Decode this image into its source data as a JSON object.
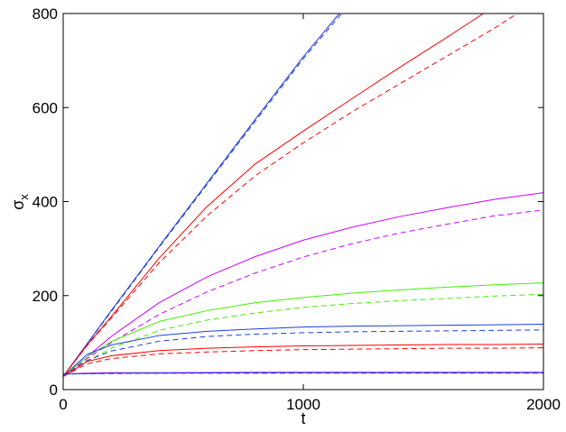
{
  "chart_data": {
    "type": "line",
    "xlabel": "t",
    "ylabel": "σ",
    "ylabel_subscript": "x",
    "xlim": [
      0,
      2000
    ],
    "ylim": [
      0,
      800
    ],
    "xticks": [
      0,
      1000,
      2000
    ],
    "yticks": [
      0,
      200,
      400,
      600,
      800
    ],
    "grid": false,
    "colors": {
      "blue": "#1f3de0",
      "red": "#ff0000",
      "magenta": "#cc00ff",
      "green": "#44ee00",
      "frame": "#000000"
    },
    "series": [
      {
        "color": "blue",
        "style": "solid",
        "x": [
          0,
          100,
          200,
          400,
          600,
          800,
          1000,
          1150
        ],
        "y": [
          28,
          98,
          168,
          305,
          440,
          575,
          708,
          800
        ]
      },
      {
        "color": "blue",
        "style": "dashed",
        "x": [
          0,
          100,
          200,
          400,
          600,
          800,
          1000,
          1160
        ],
        "y": [
          28,
          97,
          166,
          303,
          437,
          571,
          704,
          800
        ]
      },
      {
        "color": "red",
        "style": "solid",
        "x": [
          0,
          100,
          200,
          400,
          600,
          800,
          1000,
          1200,
          1400,
          1600,
          1750
        ],
        "y": [
          28,
          95,
          155,
          280,
          390,
          480,
          550,
          618,
          685,
          750,
          800
        ]
      },
      {
        "color": "red",
        "style": "dashed",
        "x": [
          0,
          100,
          200,
          400,
          600,
          800,
          1000,
          1200,
          1400,
          1600,
          1800,
          1890
        ],
        "y": [
          28,
          94,
          152,
          270,
          370,
          455,
          525,
          590,
          650,
          710,
          770,
          800
        ]
      },
      {
        "color": "magenta",
        "style": "solid",
        "x": [
          0,
          100,
          200,
          400,
          600,
          800,
          1000,
          1200,
          1400,
          1600,
          1800,
          2000
        ],
        "y": [
          28,
          70,
          113,
          185,
          240,
          283,
          318,
          345,
          368,
          387,
          405,
          419
        ]
      },
      {
        "color": "magenta",
        "style": "dashed",
        "x": [
          0,
          100,
          200,
          400,
          600,
          800,
          1000,
          1200,
          1400,
          1600,
          1800,
          2000
        ],
        "y": [
          28,
          66,
          100,
          160,
          208,
          248,
          282,
          310,
          333,
          352,
          370,
          382
        ]
      },
      {
        "color": "green",
        "style": "solid",
        "x": [
          0,
          100,
          200,
          400,
          600,
          800,
          1000,
          1200,
          1400,
          1600,
          1800,
          2000
        ],
        "y": [
          28,
          70,
          102,
          145,
          168,
          185,
          196,
          205,
          212,
          218,
          223,
          227
        ]
      },
      {
        "color": "green",
        "style": "dashed",
        "x": [
          0,
          100,
          200,
          400,
          600,
          800,
          1000,
          1200,
          1400,
          1600,
          1800,
          2000
        ],
        "y": [
          28,
          60,
          88,
          126,
          148,
          163,
          175,
          183,
          189,
          194,
          199,
          203
        ]
      },
      {
        "color": "blue",
        "style": "solid",
        "x": [
          0,
          100,
          200,
          400,
          600,
          800,
          1000,
          1200,
          1400,
          1600,
          1800,
          2000
        ],
        "y": [
          28,
          75,
          95,
          115,
          124,
          129,
          133,
          135,
          136,
          137,
          138,
          139
        ]
      },
      {
        "color": "blue",
        "style": "dashed",
        "x": [
          0,
          100,
          200,
          400,
          600,
          800,
          1000,
          1200,
          1400,
          1600,
          1800,
          2000
        ],
        "y": [
          28,
          62,
          82,
          103,
          113,
          118,
          121,
          123,
          124,
          125,
          126,
          127
        ]
      },
      {
        "color": "red",
        "style": "solid",
        "x": [
          0,
          100,
          200,
          400,
          600,
          800,
          1000,
          1200,
          1400,
          1600,
          1800,
          2000
        ],
        "y": [
          28,
          60,
          72,
          83,
          88,
          91,
          93,
          94,
          95,
          96,
          96,
          97
        ]
      },
      {
        "color": "red",
        "style": "dashed",
        "x": [
          0,
          100,
          200,
          400,
          600,
          800,
          1000,
          1200,
          1400,
          1600,
          1800,
          2000
        ],
        "y": [
          28,
          55,
          66,
          76,
          80,
          83,
          85,
          86,
          87,
          88,
          88,
          89
        ]
      },
      {
        "color": "magenta",
        "style": "solid",
        "x": [
          0,
          100,
          200,
          400,
          800,
          1200,
          1600,
          2000
        ],
        "y": [
          33,
          35,
          36,
          36,
          37,
          37,
          37,
          37
        ]
      },
      {
        "color": "magenta",
        "style": "dashed",
        "x": [
          0,
          100,
          200,
          400,
          800,
          1200,
          1600,
          2000
        ],
        "y": [
          33,
          34,
          35,
          35,
          35,
          36,
          36,
          36
        ]
      },
      {
        "color": "blue",
        "style": "solid",
        "x": [
          0,
          100,
          200,
          400,
          800,
          1200,
          1600,
          2000
        ],
        "y": [
          33,
          34,
          35,
          35,
          36,
          36,
          36,
          36
        ]
      },
      {
        "color": "blue",
        "style": "dashed",
        "x": [
          0,
          100,
          200,
          400,
          800,
          1200,
          1600,
          2000
        ],
        "y": [
          33,
          34,
          34,
          35,
          35,
          35,
          35,
          35
        ]
      }
    ]
  }
}
